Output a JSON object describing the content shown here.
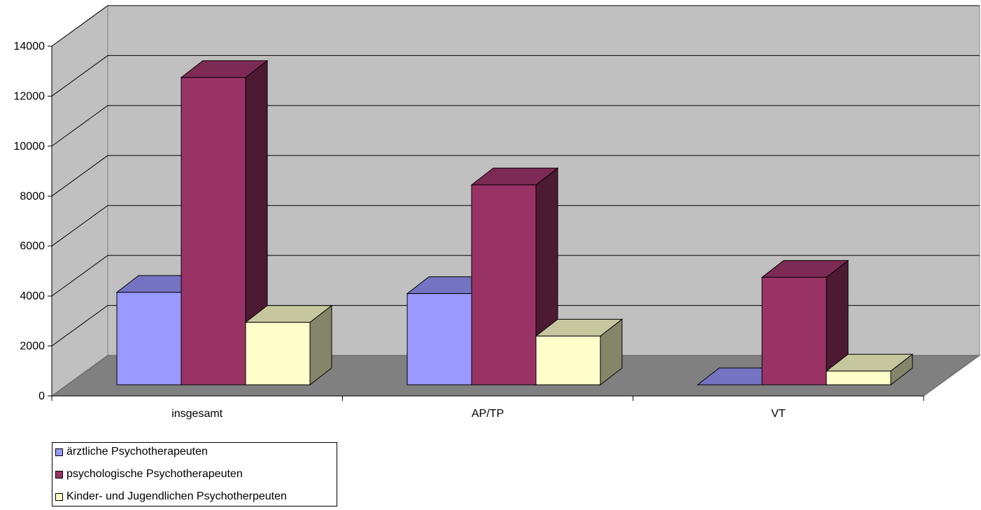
{
  "chart_data": {
    "type": "bar",
    "title": "",
    "xlabel": "",
    "ylabel": "",
    "categories": [
      "insgesamt",
      "AP/TP",
      "VT"
    ],
    "series": [
      {
        "name": "ärztliche Psychotherapeuten",
        "values": [
          3700,
          3650,
          0
        ]
      },
      {
        "name": "psychologische Psychotherapeuten",
        "values": [
          12300,
          8000,
          4300
        ]
      },
      {
        "name": "Kinder- und Jugendlichen Psychotherpeuten",
        "values": [
          2500,
          1950,
          550
        ]
      }
    ],
    "ylim": [
      0,
      14000
    ],
    "yticks": [
      "0",
      "2000",
      "4000",
      "6000",
      "8000",
      "10000",
      "12000",
      "14000"
    ],
    "grid": true,
    "legend_position": "bottom-left",
    "colors": {
      "series": [
        "#9999ff",
        "#993366",
        "#ffffcc"
      ],
      "wall": "#c0c0c0",
      "floor": "#808080"
    }
  }
}
